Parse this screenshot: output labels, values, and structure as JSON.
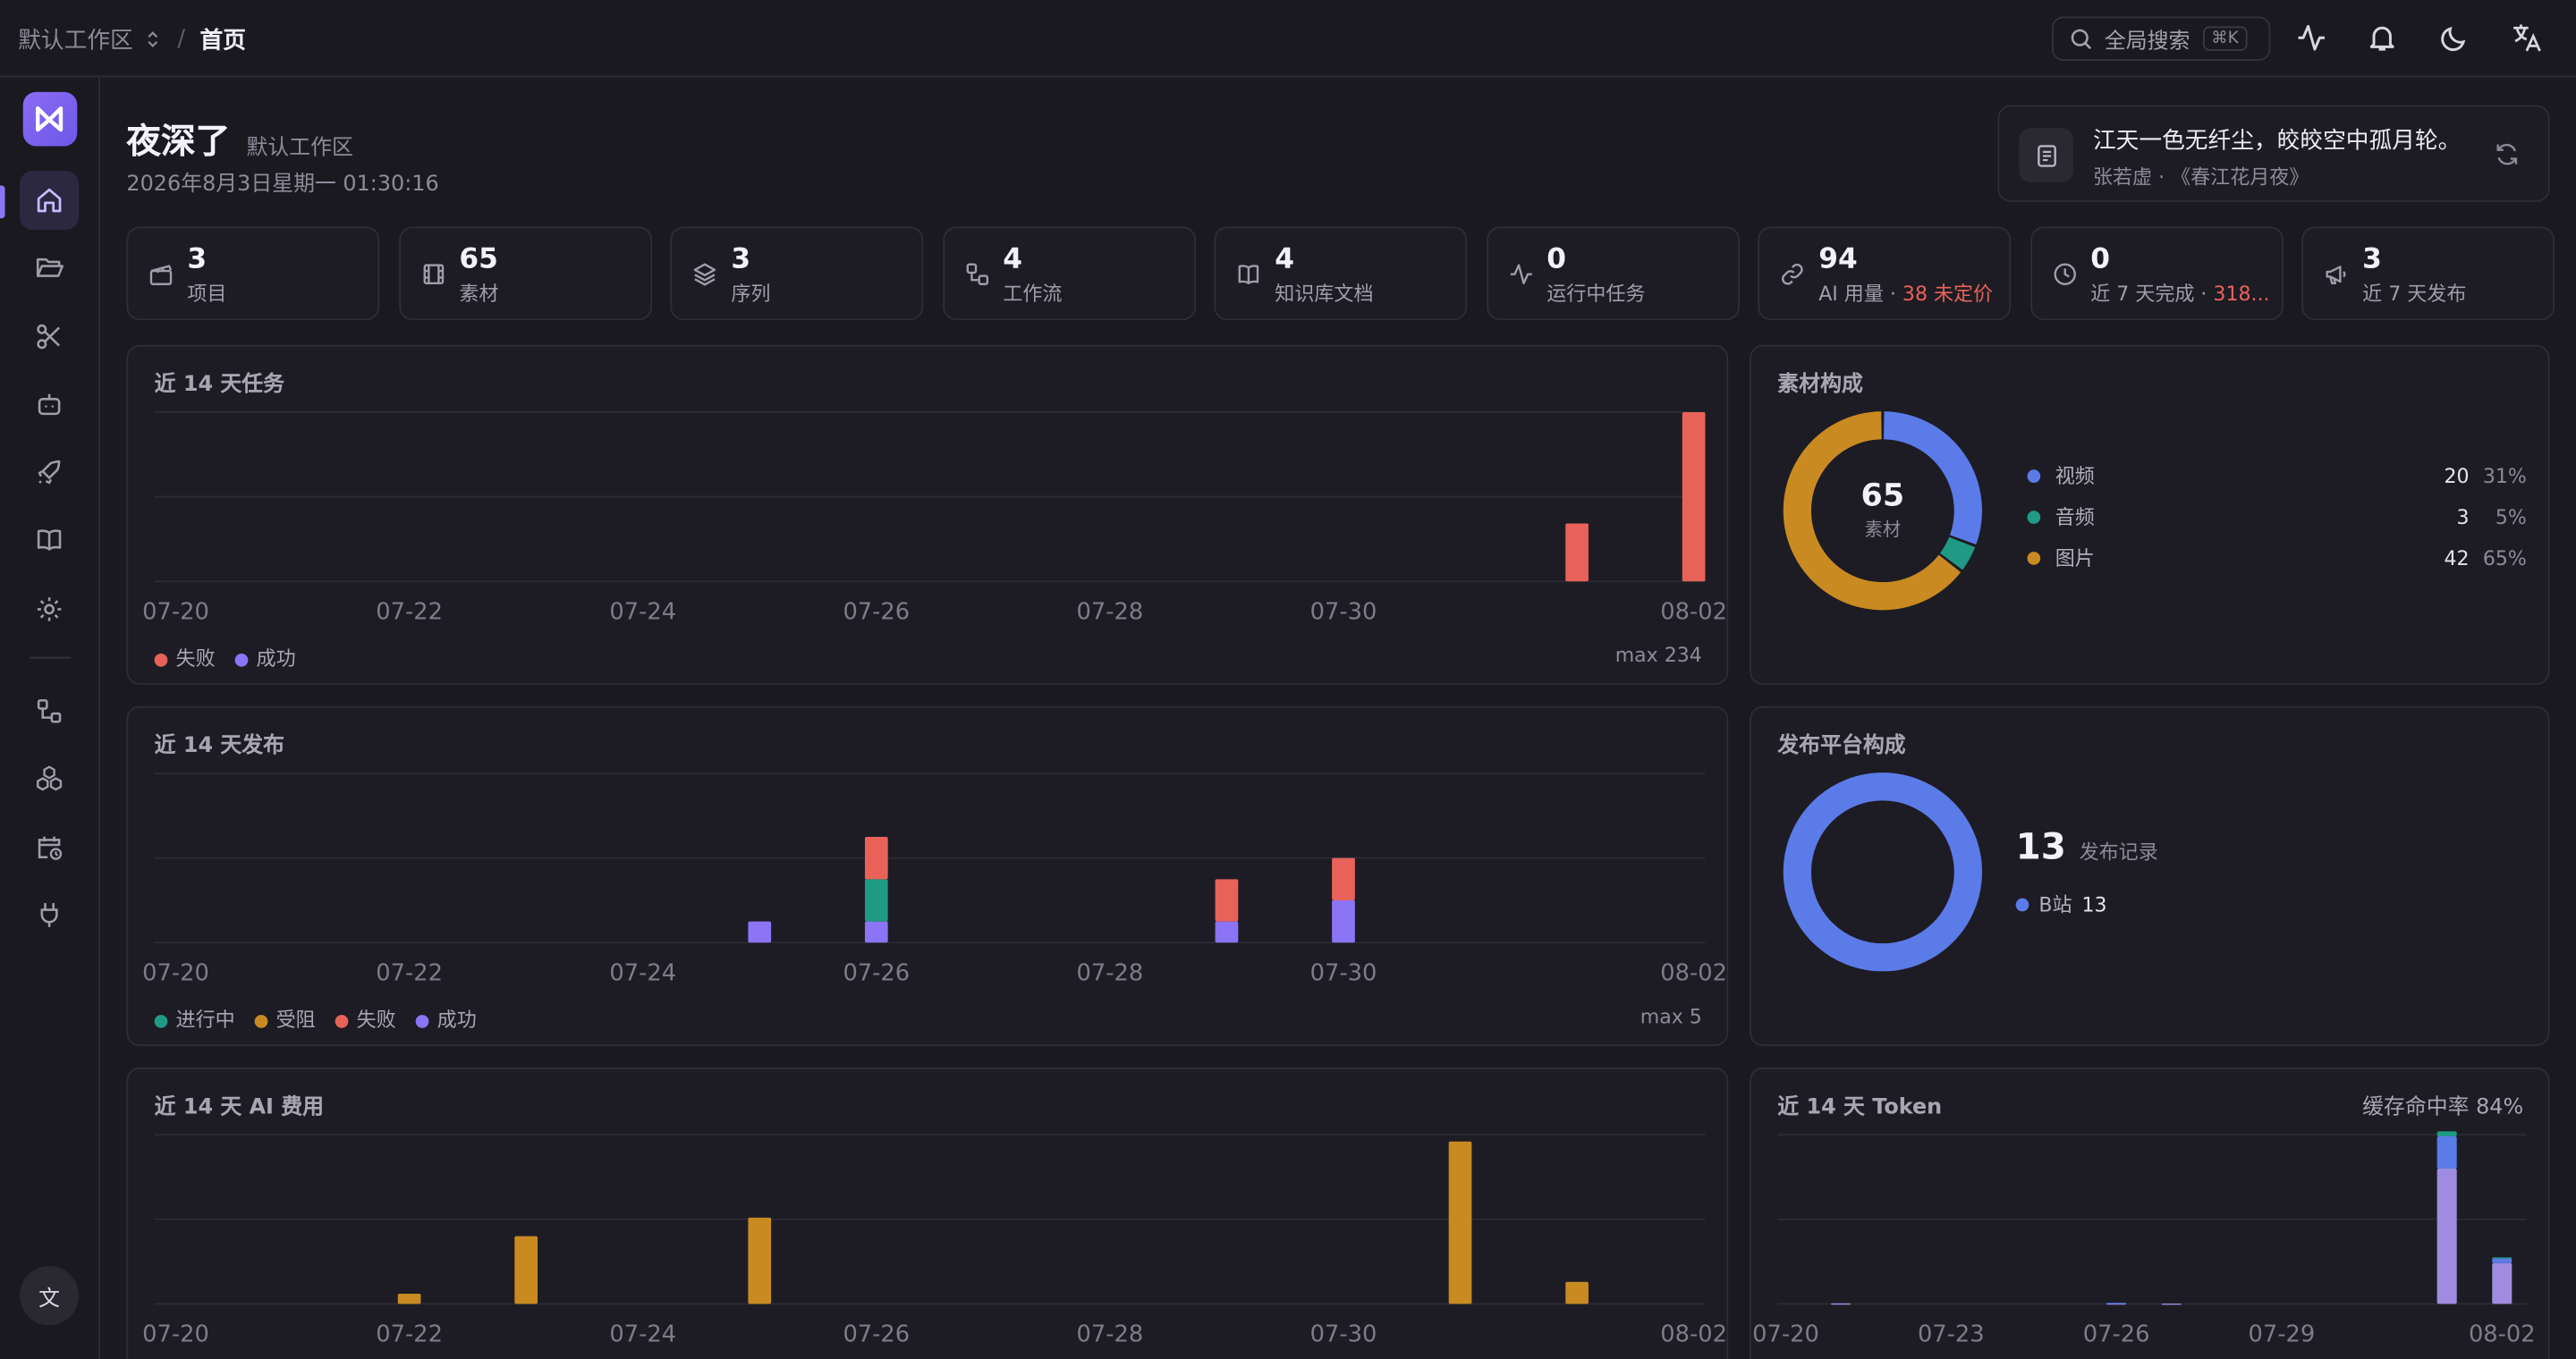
{
  "breadcrumb": {
    "workspace": "默认工作区",
    "page": "首页"
  },
  "search": {
    "label": "全局搜索",
    "shortcut": "⌘K"
  },
  "greeting": {
    "title": "夜深了",
    "workspace": "默认工作区",
    "datetime": "2026年8月3日星期一 01:30:16"
  },
  "poem": {
    "line": "江天一色无纤尘，皎皎空中孤月轮。",
    "source": "张若虚 · 《春江花月夜》"
  },
  "stats": [
    {
      "value": "3",
      "label": "项目",
      "icon": "clapper-icon"
    },
    {
      "value": "65",
      "label": "素材",
      "icon": "film-icon"
    },
    {
      "value": "3",
      "label": "序列",
      "icon": "layers-icon"
    },
    {
      "value": "4",
      "label": "工作流",
      "icon": "workflow-icon"
    },
    {
      "value": "4",
      "label": "知识库文档",
      "icon": "book-icon"
    },
    {
      "value": "0",
      "label": "运行中任务",
      "icon": "activity-icon"
    },
    {
      "value": "94",
      "label": "AI 用量 · ",
      "extra": "38 未定价",
      "icon": "link-icon"
    },
    {
      "value": "0",
      "label": "近 7 天完成 · ",
      "extra": "318...",
      "icon": "clock-icon"
    },
    {
      "value": "3",
      "label": "近 7 天发布",
      "icon": "megaphone-icon"
    }
  ],
  "tasks_card": {
    "title": "近 14 天任务",
    "max": "max 234",
    "legend": [
      {
        "label": "失败",
        "color": "#e8625a"
      },
      {
        "label": "成功",
        "color": "#8b74f5"
      }
    ]
  },
  "publish_card": {
    "title": "近 14 天发布",
    "max": "max 5",
    "legend": [
      {
        "label": "进行中",
        "color": "#1f9a84"
      },
      {
        "label": "受阻",
        "color": "#c98a22"
      },
      {
        "label": "失败",
        "color": "#e8625a"
      },
      {
        "label": "成功",
        "color": "#8b74f5"
      }
    ]
  },
  "aicost_card": {
    "title": "近 14 天 AI 费用"
  },
  "assets_card": {
    "title": "素材构成",
    "total": "65",
    "total_label": "素材",
    "items": [
      {
        "label": "视频",
        "value": "20",
        "pct": "31%",
        "color": "#5b7be8"
      },
      {
        "label": "音频",
        "value": "3",
        "pct": "5%",
        "color": "#1f9a84"
      },
      {
        "label": "图片",
        "value": "42",
        "pct": "65%",
        "color": "#c98a22"
      }
    ]
  },
  "platform_card": {
    "title": "发布平台构成",
    "total": "13",
    "total_label": "发布记录",
    "items": [
      {
        "label": "B站",
        "value": "13",
        "color": "#5b7be8"
      }
    ]
  },
  "token_card": {
    "title": "近 14 天 Token",
    "cache": "缓存命中率 84%"
  },
  "chart_data": [
    {
      "type": "bar",
      "title": "近 14 天任务",
      "stacked": true,
      "categories": [
        "07-20",
        "07-21",
        "07-22",
        "07-23",
        "07-24",
        "07-25",
        "07-26",
        "07-27",
        "07-28",
        "07-29",
        "07-30",
        "07-31",
        "08-01",
        "08-02"
      ],
      "series": [
        {
          "name": "失败",
          "color": "#e8625a",
          "values": [
            0,
            0,
            0,
            0,
            0,
            0,
            0,
            0,
            0,
            0,
            0,
            0,
            80,
            234
          ]
        },
        {
          "name": "成功",
          "color": "#8b74f5",
          "values": [
            0,
            0,
            0,
            0,
            0,
            0,
            0,
            0,
            0,
            0,
            0,
            0,
            0,
            0
          ]
        }
      ],
      "ylim": [
        0,
        234
      ],
      "xticks": [
        "07-20",
        "07-22",
        "07-24",
        "07-26",
        "07-28",
        "07-30",
        "08-02"
      ],
      "grid": true,
      "legend": "bottom-left"
    },
    {
      "type": "bar",
      "title": "近 14 天发布",
      "stacked": true,
      "categories": [
        "07-20",
        "07-21",
        "07-22",
        "07-23",
        "07-24",
        "07-25",
        "07-26",
        "07-27",
        "07-28",
        "07-29",
        "07-30",
        "07-31",
        "08-01",
        "08-02"
      ],
      "series": [
        {
          "name": "成功",
          "color": "#8b74f5",
          "values": [
            0,
            0,
            0,
            0,
            0,
            1,
            1,
            0,
            0,
            1,
            2,
            0,
            0,
            0
          ]
        },
        {
          "name": "进行中",
          "color": "#1f9a84",
          "values": [
            0,
            0,
            0,
            0,
            0,
            0,
            2,
            0,
            0,
            0,
            0,
            0,
            0,
            0
          ]
        },
        {
          "name": "受阻",
          "color": "#c98a22",
          "values": [
            0,
            0,
            0,
            0,
            0,
            0,
            0,
            0,
            0,
            0,
            0,
            0,
            0,
            0
          ]
        },
        {
          "name": "失败",
          "color": "#e8625a",
          "values": [
            0,
            0,
            0,
            0,
            0,
            0,
            2,
            0,
            0,
            2,
            2,
            0,
            0,
            0
          ]
        }
      ],
      "ylim": [
        0,
        8
      ],
      "xticks": [
        "07-20",
        "07-22",
        "07-24",
        "07-26",
        "07-28",
        "07-30",
        "08-02"
      ],
      "grid": true,
      "legend": "bottom-left"
    },
    {
      "type": "bar",
      "title": "近 14 天 AI 费用",
      "categories": [
        "07-20",
        "07-21",
        "07-22",
        "07-23",
        "07-24",
        "07-25",
        "07-26",
        "07-27",
        "07-28",
        "07-29",
        "07-30",
        "07-31",
        "08-01",
        "08-02"
      ],
      "series": [
        {
          "color": "#c98a22",
          "values": [
            0,
            0,
            6,
            40,
            0,
            51,
            0,
            0,
            0,
            0,
            0,
            96,
            13,
            0
          ]
        }
      ],
      "ylim": [
        0,
        100
      ],
      "xticks": [
        "07-20",
        "07-22",
        "07-24",
        "07-26",
        "07-28",
        "07-30",
        "08-02"
      ],
      "grid": true
    },
    {
      "type": "bar",
      "title": "近 14 天 Token",
      "stacked": true,
      "categories": [
        "07-20",
        "07-21",
        "07-22",
        "07-23",
        "07-24",
        "07-25",
        "07-26",
        "07-27",
        "07-28",
        "07-29",
        "07-30",
        "07-31",
        "08-01",
        "08-02"
      ],
      "series": [
        {
          "color": "#9f8ce0",
          "values": [
            0,
            0.3,
            0,
            0,
            0,
            0,
            0.3,
            0.2,
            0,
            0,
            0,
            0,
            80,
            24
          ]
        },
        {
          "color": "#5b7be8",
          "values": [
            0,
            0,
            0,
            0,
            0,
            0,
            0.3,
            0,
            0,
            0,
            0,
            0,
            19,
            3
          ]
        },
        {
          "color": "#1f9a84",
          "values": [
            0,
            0,
            0,
            0,
            0,
            0,
            0,
            0,
            0,
            0,
            0,
            0,
            3,
            0.5
          ]
        }
      ],
      "ylim": [
        0,
        100
      ],
      "xticks": [
        "07-20",
        "07-23",
        "07-26",
        "07-29",
        "08-02"
      ],
      "grid": true
    },
    {
      "type": "pie",
      "title": "素材构成",
      "donut": true,
      "labels": [
        "视频",
        "音频",
        "图片"
      ],
      "values": [
        20,
        3,
        42
      ],
      "colors": [
        "#5b7be8",
        "#1f9a84",
        "#c98a22"
      ]
    },
    {
      "type": "pie",
      "title": "发布平台构成",
      "donut": true,
      "labels": [
        "B站"
      ],
      "values": [
        13
      ],
      "colors": [
        "#5b7be8"
      ]
    }
  ]
}
